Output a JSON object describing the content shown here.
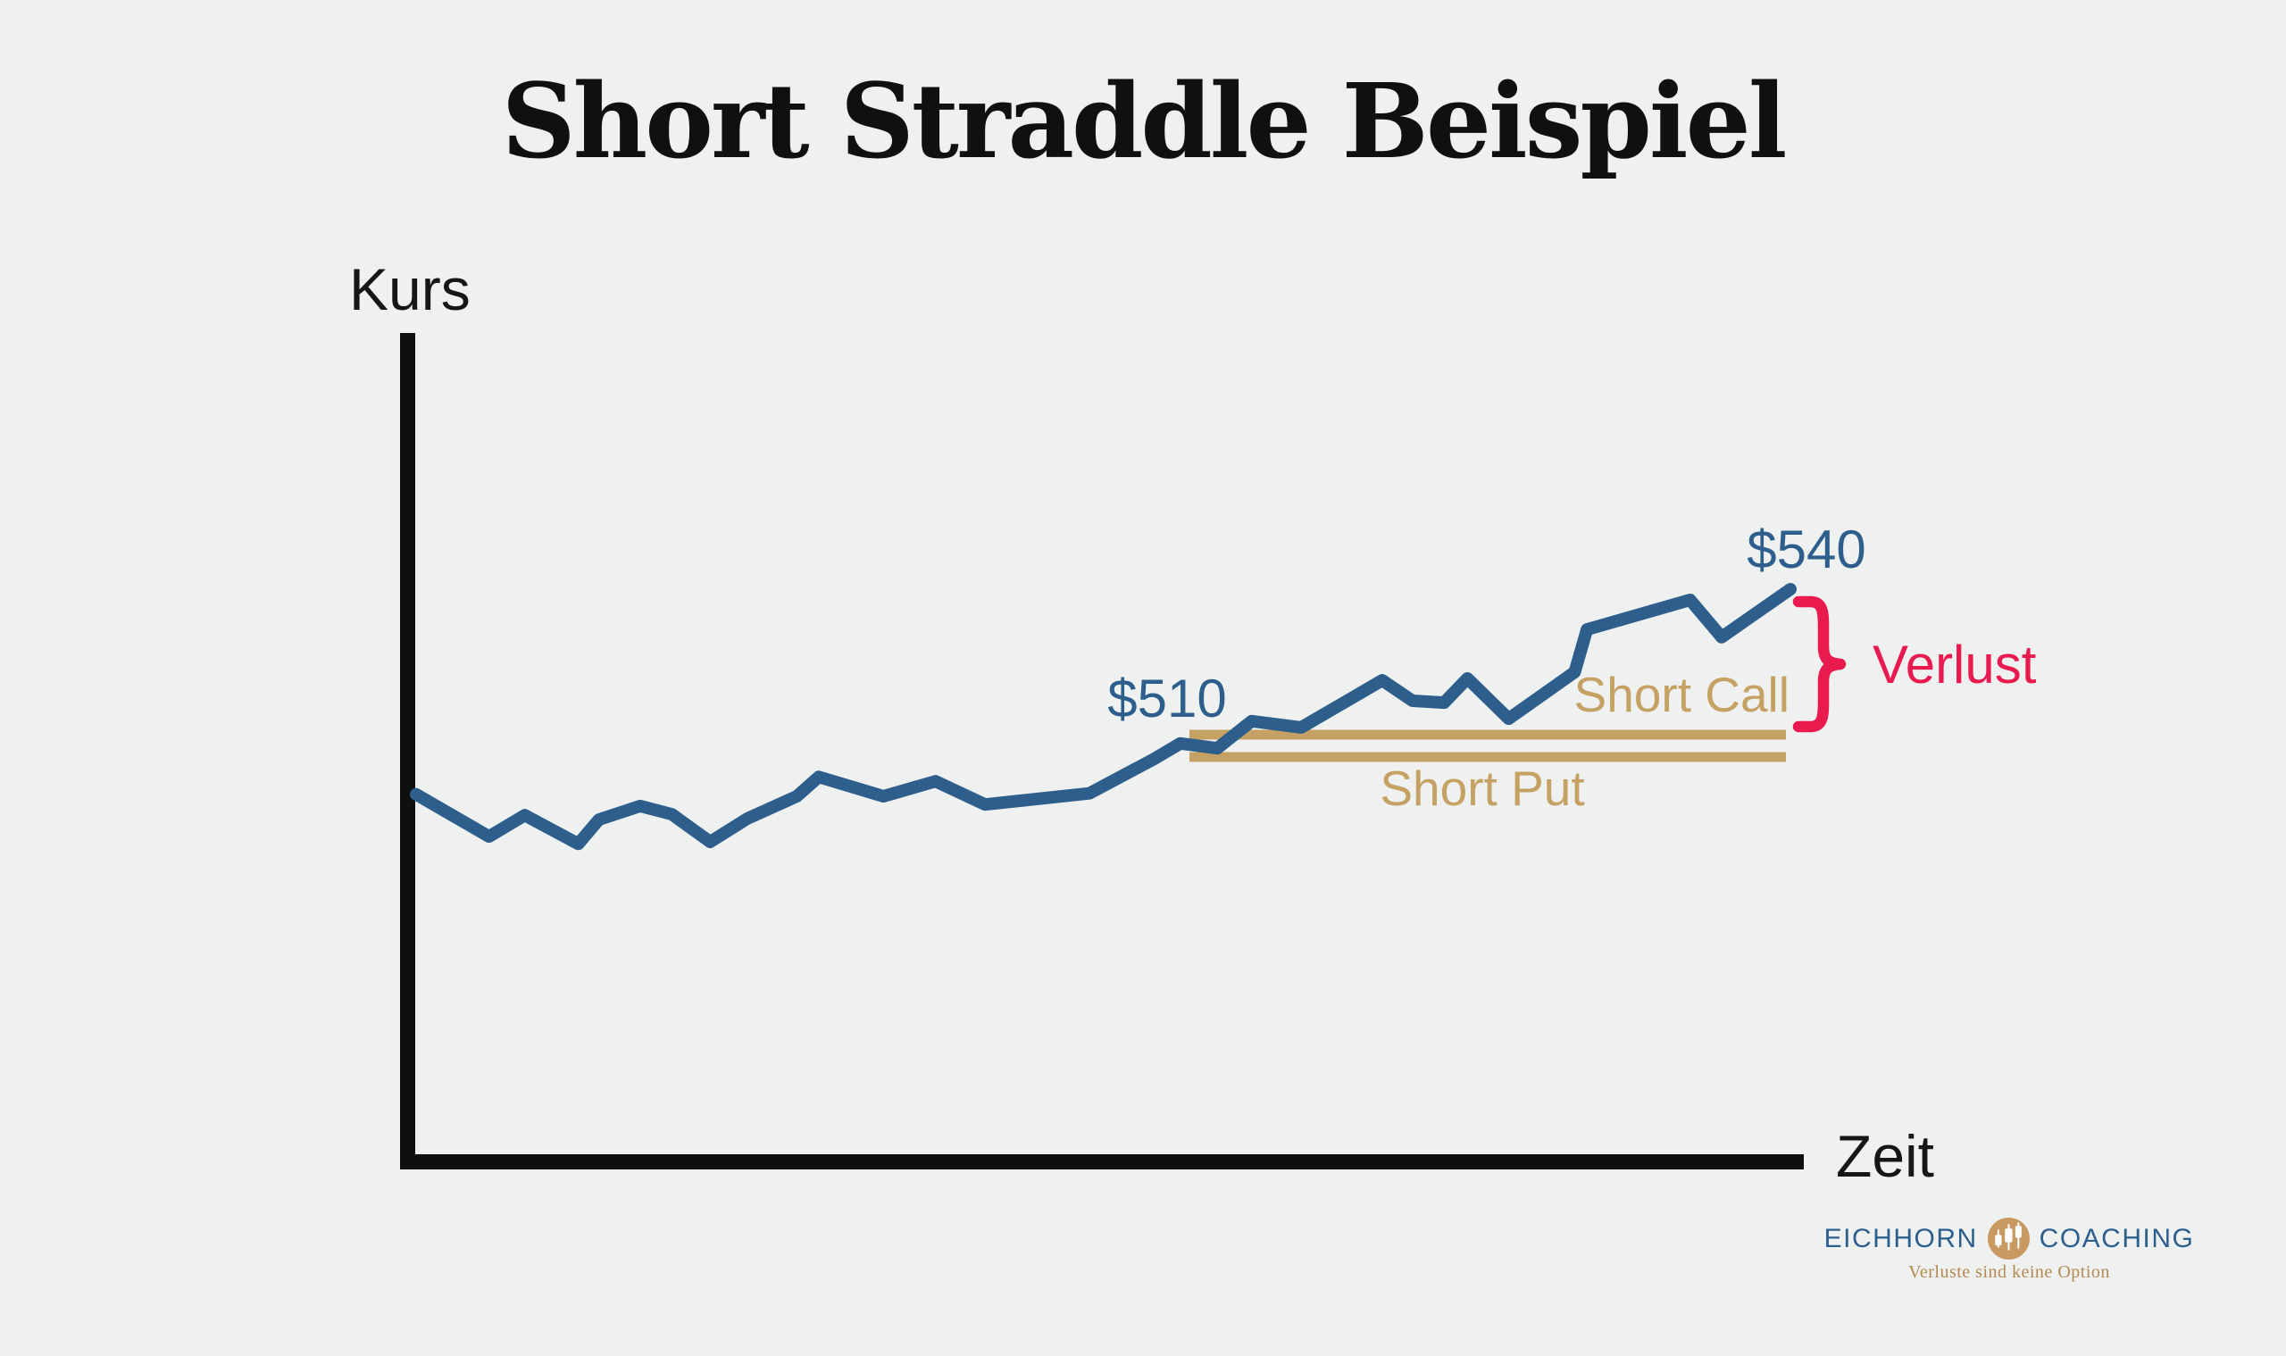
{
  "title": "Short Straddle Beispiel",
  "axis": {
    "y_label": "Kurs",
    "x_label": "Zeit"
  },
  "annotations": {
    "entry_price": "$510",
    "exit_price": "$540",
    "short_call": "Short Call",
    "short_put": "Short Put",
    "loss": "Verlust"
  },
  "logo": {
    "brand_left": "EICHHORN",
    "brand_right": "COACHING",
    "tagline": "Verluste sind keine Option",
    "icon": "candlestick-logo-icon"
  },
  "colors": {
    "background": "#eef1f0",
    "price_line": "#2d5e8c",
    "strike_lines": "#c5a164",
    "loss": "#e81a4e",
    "axis": "#0f0f0f",
    "logo_blue": "#2d5f8d",
    "logo_gold": "#c89a62"
  },
  "chart_data": {
    "type": "line",
    "title": "Short Straddle Beispiel",
    "xlabel": "Zeit",
    "ylabel": "Kurs",
    "grid": false,
    "legend": false,
    "x_range": [
      0,
      100
    ],
    "x_unit": "percent of shown timeline (no ticks on axes)",
    "series": [
      {
        "name": "Kurs",
        "color": "#2d5e8c",
        "points": [
          [
            0,
            497.7
          ],
          [
            5.3,
            489.0
          ],
          [
            7.9,
            493.4
          ],
          [
            11.8,
            487.5
          ],
          [
            13.3,
            492.5
          ],
          [
            16.3,
            495.3
          ],
          [
            18.6,
            493.6
          ],
          [
            21.4,
            487.9
          ],
          [
            24.1,
            492.7
          ],
          [
            27.7,
            497.3
          ],
          [
            29.3,
            501.3
          ],
          [
            34.0,
            497.3
          ],
          [
            37.8,
            500.4
          ],
          [
            41.4,
            495.6
          ],
          [
            49.0,
            497.9
          ],
          [
            53.7,
            505.0
          ],
          [
            55.6,
            508.2
          ],
          [
            58.3,
            507.2
          ],
          [
            60.8,
            512.8
          ],
          [
            64.4,
            511.5
          ],
          [
            70.3,
            521.2
          ],
          [
            72.5,
            517.0
          ],
          [
            74.8,
            516.6
          ],
          [
            76.5,
            521.6
          ],
          [
            79.5,
            513.3
          ],
          [
            84.3,
            522.9
          ],
          [
            85.2,
            531.7
          ],
          [
            92.7,
            537.8
          ],
          [
            95.0,
            530.1
          ],
          [
            100,
            540.0
          ]
        ]
      }
    ],
    "levels": [
      {
        "name": "Short Call",
        "strike": 510,
        "label": "$510",
        "color": "#c5a164",
        "x_span": [
          56.3,
          99.7
        ]
      },
      {
        "name": "Short Put",
        "strike": 510,
        "label": "$510",
        "color": "#c5a164",
        "x_span": [
          56.3,
          99.7
        ]
      }
    ],
    "callouts": [
      {
        "text": "$510",
        "value": 510,
        "color": "#2d5e8c"
      },
      {
        "text": "$540",
        "value": 540,
        "color": "#2d5e8c"
      },
      {
        "text": "Verlust",
        "brace_from": 510,
        "brace_to": 540,
        "color": "#e81a4e"
      }
    ]
  }
}
